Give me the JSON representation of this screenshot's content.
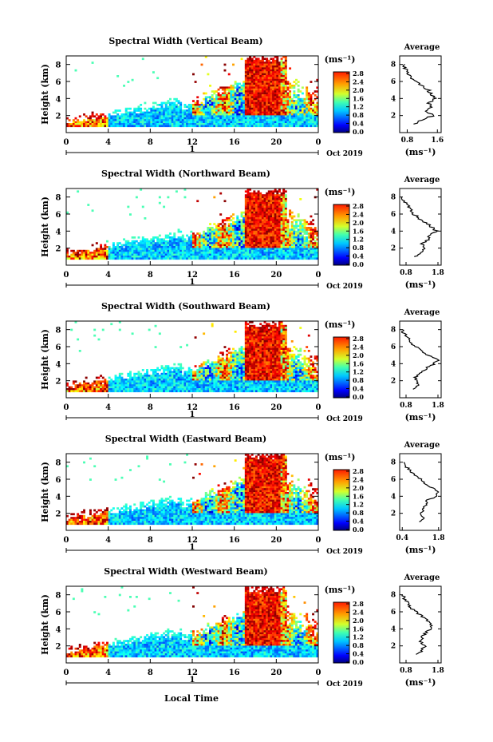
{
  "chart_data": {
    "type": "heatmap",
    "x_axis_label": "Local Time",
    "date_label": "Oct 2019",
    "day_label": "1",
    "time_ticks": [
      "0",
      "4",
      "8",
      "12",
      "16",
      "20",
      "0"
    ],
    "time_range_hours": [
      0,
      24
    ],
    "colorbar": {
      "unit_label": "(ms⁻¹)",
      "ticks": [
        "2.8",
        "2.4",
        "2.0",
        "1.6",
        "1.2",
        "0.8",
        "0.4",
        "0.0"
      ],
      "range": [
        0.0,
        2.8
      ],
      "colormap": "jet"
    },
    "average_panel_title": "Average",
    "average_unit_label": "(ms⁻¹)",
    "panels": [
      {
        "title": "Spectral Width (Vertical Beam)",
        "ylabel": "Height (km)",
        "yticks": [
          "8",
          "6",
          "4",
          "2"
        ],
        "avg_xticks": [
          "0.8",
          "1.6"
        ],
        "avg_xrange": [
          0.6,
          1.7
        ],
        "avg_profile": {
          "height_km": [
            1.0,
            1.5,
            2.0,
            2.5,
            3.0,
            3.5,
            4.0,
            4.5,
            5.0,
            5.5,
            6.0,
            6.5,
            7.0,
            7.5,
            8.0
          ],
          "value": [
            1.0,
            1.15,
            1.5,
            1.3,
            1.45,
            1.35,
            1.55,
            1.45,
            1.35,
            1.2,
            1.0,
            0.9,
            0.82,
            0.75,
            0.7
          ]
        }
      },
      {
        "title": "Spectral Width (Northward Beam)",
        "ylabel": "Height (km)",
        "yticks": [
          "8",
          "6",
          "4",
          "2"
        ],
        "avg_xticks": [
          "0.8",
          "1.8"
        ],
        "avg_xrange": [
          0.6,
          1.9
        ],
        "avg_profile": {
          "height_km": [
            1.0,
            1.5,
            2.0,
            2.5,
            3.0,
            3.5,
            4.0,
            4.5,
            5.0,
            5.5,
            6.0,
            6.5,
            7.0,
            7.5,
            8.0
          ],
          "value": [
            1.1,
            1.25,
            1.4,
            1.3,
            1.5,
            1.55,
            1.75,
            1.6,
            1.4,
            1.2,
            1.05,
            0.95,
            0.85,
            0.75,
            0.7
          ]
        }
      },
      {
        "title": "Spectral Width (Southward Beam)",
        "ylabel": "Height (km)",
        "yticks": [
          "8",
          "6",
          "4",
          "2"
        ],
        "avg_xticks": [
          "0.8",
          "1.8"
        ],
        "avg_xrange": [
          0.6,
          1.9
        ],
        "avg_profile": {
          "height_km": [
            1.0,
            1.5,
            2.0,
            2.5,
            3.0,
            3.5,
            4.0,
            4.5,
            5.0,
            5.5,
            6.0,
            6.5,
            7.0,
            7.5,
            8.0
          ],
          "value": [
            1.05,
            1.2,
            1.15,
            1.1,
            1.3,
            1.45,
            1.7,
            1.8,
            1.5,
            1.25,
            1.1,
            0.95,
            0.85,
            0.75,
            0.65
          ]
        }
      },
      {
        "title": "Spectral Width (Eastward Beam)",
        "ylabel": "Height (km)",
        "yticks": [
          "8",
          "6",
          "4",
          "2"
        ],
        "avg_xticks": [
          "0.4",
          "1.8"
        ],
        "avg_xrange": [
          0.3,
          1.9
        ],
        "avg_profile": {
          "height_km": [
            1.0,
            1.5,
            2.0,
            2.5,
            3.0,
            3.5,
            4.0,
            4.5,
            5.0,
            5.5,
            6.0,
            6.5,
            7.0,
            7.5,
            8.0
          ],
          "value": [
            1.1,
            1.2,
            1.15,
            1.2,
            1.3,
            1.35,
            1.7,
            1.75,
            1.55,
            1.3,
            1.1,
            0.9,
            0.7,
            0.55,
            0.5
          ]
        }
      },
      {
        "title": "Spectral Width (Westward Beam)",
        "ylabel": "Height (km)",
        "yticks": [
          "8",
          "6",
          "4",
          "2"
        ],
        "avg_xticks": [
          "0.8",
          "1.8"
        ],
        "avg_xrange": [
          0.6,
          1.9
        ],
        "avg_profile": {
          "height_km": [
            1.0,
            1.5,
            2.0,
            2.5,
            3.0,
            3.5,
            4.0,
            4.5,
            5.0,
            5.5,
            6.0,
            6.5,
            7.0,
            7.5,
            8.0
          ],
          "value": [
            1.15,
            1.3,
            1.4,
            1.25,
            1.3,
            1.4,
            1.6,
            1.55,
            1.45,
            1.3,
            1.1,
            0.95,
            0.85,
            0.75,
            0.7
          ]
        }
      }
    ]
  }
}
